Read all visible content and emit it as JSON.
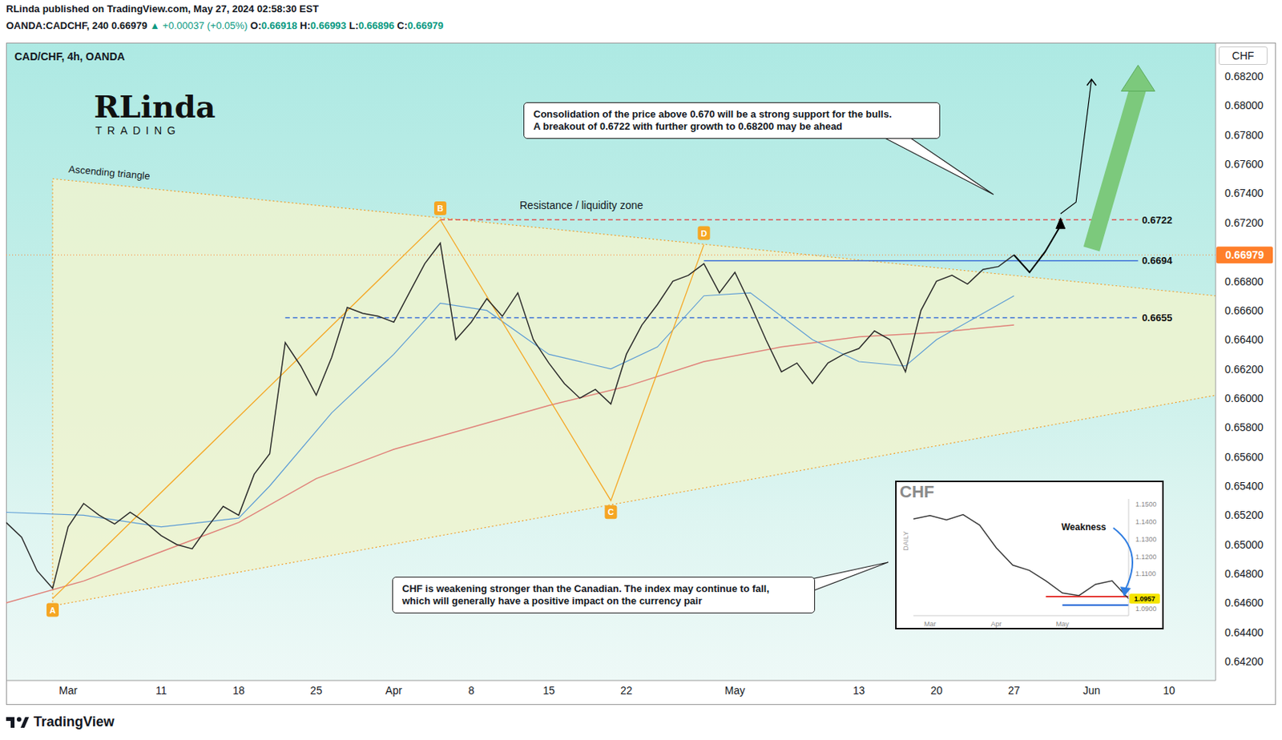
{
  "header": {
    "title": "RLinda published on TradingView.com, May 27, 2024 02:58:30 EST",
    "symbol": "OANDA:CADCHF, 240",
    "price": "0.66979",
    "change": "▲ +0.00037 (+0.05%)",
    "ohlc": [
      [
        "O:",
        "0.66918"
      ],
      [
        "H:",
        "0.66993"
      ],
      [
        "L:",
        "0.66896"
      ],
      [
        "C:",
        "0.66979"
      ]
    ]
  },
  "logo": {
    "name": "RLinda",
    "subtitle": "TRADING"
  },
  "footer": "TradingView",
  "chart_data": [
    {
      "type": "line",
      "title": "CAD/CHF, 4h, OANDA",
      "y_axis_label": "CHF",
      "categories": [
        null,
        null,
        null,
        null,
        "Mar",
        null,
        null,
        null,
        null,
        null,
        "11",
        null,
        null,
        null,
        null,
        "18",
        null,
        null,
        null,
        null,
        "25",
        null,
        null,
        null,
        null,
        "Apr",
        null,
        null,
        null,
        null,
        "8",
        null,
        null,
        null,
        null,
        "15",
        null,
        null,
        null,
        null,
        "22",
        null,
        null,
        null,
        null,
        null,
        null,
        "May",
        null,
        null,
        null,
        null,
        null,
        null,
        null,
        "13",
        null,
        null,
        null,
        null,
        "20",
        null,
        null,
        null,
        null,
        "27",
        null,
        null,
        null,
        null,
        "Jun",
        null,
        null,
        null,
        null,
        "10",
        null,
        null,
        null
      ],
      "values": [
        0.6515,
        0.6505,
        0.6482,
        0.647,
        0.6512,
        0.6528,
        0.652,
        0.6514,
        0.6522,
        0.6515,
        0.6506,
        0.65,
        0.6497,
        0.6512,
        0.6526,
        0.652,
        0.6548,
        0.6562,
        0.6638,
        0.6622,
        0.6602,
        0.6628,
        0.6662,
        0.6658,
        0.6656,
        0.6652,
        0.6672,
        0.6692,
        0.6706,
        0.664,
        0.6652,
        0.6668,
        0.6656,
        0.6672,
        0.664,
        0.6624,
        0.661,
        0.66,
        0.6606,
        0.6596,
        0.663,
        0.665,
        0.6664,
        0.668,
        0.6684,
        0.6692,
        0.6672,
        0.6686,
        0.6664,
        0.664,
        0.6618,
        0.6624,
        0.661,
        0.6624,
        0.663,
        0.6634,
        0.6646,
        0.664,
        0.6618,
        0.666,
        0.668,
        0.6684,
        0.6678,
        0.6688,
        0.669,
        0.66979,
        null,
        null,
        null,
        null,
        null,
        null,
        null,
        null,
        null,
        null,
        null,
        null,
        null
      ],
      "color": "#2b2b2b",
      "moving_averages": [
        {
          "color": "#5b9bd5",
          "values": [
            0.6522,
            null,
            null,
            null,
            null,
            0.652,
            null,
            null,
            null,
            null,
            0.6512,
            null,
            null,
            null,
            null,
            0.6518,
            null,
            0.654,
            null,
            null,
            null,
            0.659,
            null,
            null,
            null,
            0.663,
            null,
            null,
            0.6665,
            null,
            null,
            0.666,
            null,
            null,
            null,
            0.663,
            null,
            null,
            null,
            0.662,
            null,
            null,
            0.6635,
            null,
            null,
            0.667,
            null,
            null,
            0.6672,
            null,
            null,
            null,
            0.664,
            null,
            null,
            0.6625,
            null,
            null,
            0.6622,
            null,
            0.664,
            null,
            null,
            0.6658,
            null,
            0.667,
            null,
            null,
            null,
            null,
            null,
            null,
            null,
            null,
            null,
            null,
            null,
            null,
            null
          ]
        },
        {
          "color": "#e0827a",
          "values": [
            0.646,
            null,
            null,
            null,
            null,
            0.6475,
            null,
            null,
            null,
            null,
            0.6495,
            null,
            null,
            null,
            null,
            0.6515,
            null,
            null,
            null,
            null,
            0.6545,
            null,
            null,
            null,
            null,
            0.6565,
            null,
            null,
            null,
            null,
            0.658,
            null,
            null,
            null,
            null,
            0.6595,
            null,
            null,
            null,
            null,
            0.6608,
            null,
            null,
            null,
            null,
            0.6625,
            null,
            null,
            null,
            null,
            0.6635,
            null,
            null,
            null,
            null,
            0.6642,
            null,
            null,
            null,
            null,
            0.6645,
            null,
            null,
            null,
            null,
            0.665,
            null,
            null,
            null,
            null,
            null,
            null,
            null,
            null,
            null,
            null,
            null,
            null,
            null
          ]
        }
      ],
      "ylim": [
        0.6407,
        0.6843
      ],
      "yticks": [
        {
          "value": 0.682,
          "label": "0.68200"
        },
        {
          "value": 0.68,
          "label": "0.68000"
        },
        {
          "value": 0.678,
          "label": "0.67800"
        },
        {
          "value": 0.676,
          "label": "0.67600"
        },
        {
          "value": 0.674,
          "label": "0.67400"
        },
        {
          "value": 0.672,
          "label": "0.67200"
        },
        {
          "value": 0.668,
          "label": "0.66800"
        },
        {
          "value": 0.666,
          "label": "0.66600"
        },
        {
          "value": 0.664,
          "label": "0.66400"
        },
        {
          "value": 0.662,
          "label": "0.66200"
        },
        {
          "value": 0.66,
          "label": "0.66000"
        },
        {
          "value": 0.658,
          "label": "0.65800"
        },
        {
          "value": 0.656,
          "label": "0.65600"
        },
        {
          "value": 0.654,
          "label": "0.65400"
        },
        {
          "value": 0.652,
          "label": "0.65200"
        },
        {
          "value": 0.65,
          "label": "0.65000"
        },
        {
          "value": 0.648,
          "label": "0.64800"
        },
        {
          "value": 0.646,
          "label": "0.64600"
        },
        {
          "value": 0.644,
          "label": "0.64400"
        },
        {
          "value": 0.642,
          "label": "0.64200"
        }
      ],
      "grid": false,
      "last_price": {
        "value": 0.66979,
        "label": "0.66979",
        "color": "#ff7f2a"
      },
      "levels": [
        {
          "value": 0.6722,
          "label": "0.6722",
          "color": "#e05050",
          "line_style": "dashed"
        },
        {
          "value": 0.6694,
          "label": "0.6694",
          "color": "#3b6fd8",
          "line_style": "solid"
        },
        {
          "value": 0.6655,
          "label": "0.6655",
          "color": "#3b6fd8",
          "line_style": "dashed"
        }
      ],
      "zone_label": "Resistance / liquidity zone",
      "triangle": {
        "label": "Ascending triangle",
        "color": "#f0a030",
        "upper": [
          null,
          null,
          null,
          0.675,
          null,
          null,
          null,
          null,
          null,
          null,
          null,
          null,
          null,
          null,
          null,
          null,
          null,
          null,
          null,
          null,
          null,
          null,
          null,
          null,
          null,
          null,
          null,
          null,
          null,
          null,
          null,
          null,
          null,
          null,
          null,
          null,
          null,
          null,
          null,
          null,
          null,
          null,
          null,
          null,
          null,
          null,
          null,
          null,
          null,
          null,
          null,
          null,
          null,
          null,
          null,
          null,
          null,
          null,
          null,
          null,
          null,
          null,
          null,
          null,
          null,
          null,
          null,
          null,
          null,
          null,
          null,
          null,
          null,
          null,
          null,
          null,
          null,
          null,
          0.667
        ],
        "lower": [
          null,
          null,
          null,
          0.6458,
          null,
          null,
          null,
          null,
          null,
          null,
          null,
          null,
          null,
          null,
          null,
          null,
          null,
          null,
          null,
          null,
          null,
          null,
          null,
          null,
          null,
          null,
          null,
          null,
          null,
          null,
          null,
          null,
          null,
          null,
          null,
          null,
          null,
          null,
          null,
          null,
          null,
          null,
          null,
          null,
          null,
          null,
          null,
          null,
          null,
          null,
          null,
          null,
          null,
          null,
          null,
          null,
          null,
          null,
          null,
          null,
          null,
          null,
          null,
          null,
          null,
          null,
          null,
          null,
          null,
          null,
          null,
          null,
          null,
          null,
          null,
          null,
          null,
          null,
          0.6602
        ]
      },
      "pattern": {
        "color": "#f5a623",
        "values": [
          null,
          null,
          null,
          0.6463,
          null,
          null,
          null,
          null,
          null,
          null,
          null,
          null,
          null,
          null,
          null,
          null,
          null,
          null,
          null,
          null,
          null,
          null,
          null,
          null,
          null,
          null,
          null,
          null,
          0.6722,
          null,
          null,
          null,
          null,
          null,
          null,
          null,
          null,
          null,
          null,
          0.653,
          null,
          null,
          null,
          null,
          null,
          0.6705,
          null,
          null,
          null,
          null,
          null,
          null,
          null,
          null,
          null,
          null,
          null,
          null,
          null,
          null,
          null,
          null,
          null,
          null,
          null,
          null,
          null,
          null,
          null,
          null,
          null,
          null,
          null,
          null,
          null,
          null,
          null,
          null,
          null
        ],
        "point_labels": [
          null,
          null,
          null,
          "A",
          null,
          null,
          null,
          null,
          null,
          null,
          null,
          null,
          null,
          null,
          null,
          null,
          null,
          null,
          null,
          null,
          null,
          null,
          null,
          null,
          null,
          null,
          null,
          null,
          "B",
          null,
          null,
          null,
          null,
          null,
          null,
          null,
          null,
          null,
          null,
          "C",
          null,
          null,
          null,
          null,
          null,
          "D",
          null,
          null,
          null,
          null,
          null,
          null,
          null,
          null,
          null,
          null,
          null,
          null,
          null,
          null,
          null,
          null,
          null,
          null,
          null,
          null,
          null,
          null,
          null,
          null,
          null,
          null,
          null,
          null,
          null,
          null,
          null,
          null,
          null
        ]
      },
      "projection": {
        "color": "#000000",
        "values": [
          null,
          null,
          null,
          null,
          null,
          null,
          null,
          null,
          null,
          null,
          null,
          null,
          null,
          null,
          null,
          null,
          null,
          null,
          null,
          null,
          null,
          null,
          null,
          null,
          null,
          null,
          null,
          null,
          null,
          null,
          null,
          null,
          null,
          null,
          null,
          null,
          null,
          null,
          null,
          null,
          null,
          null,
          null,
          null,
          null,
          null,
          null,
          null,
          null,
          null,
          null,
          null,
          null,
          null,
          null,
          null,
          null,
          null,
          null,
          null,
          null,
          null,
          null,
          null,
          null,
          0.66979,
          0.6686,
          0.67,
          0.6718,
          null,
          null,
          null,
          null,
          null,
          null,
          null,
          null,
          null,
          null
        ]
      },
      "projection_extension": {
        "color": "#000000",
        "values": [
          null,
          null,
          null,
          null,
          null,
          null,
          null,
          null,
          null,
          null,
          null,
          null,
          null,
          null,
          null,
          null,
          null,
          null,
          null,
          null,
          null,
          null,
          null,
          null,
          null,
          null,
          null,
          null,
          null,
          null,
          null,
          null,
          null,
          null,
          null,
          null,
          null,
          null,
          null,
          null,
          null,
          null,
          null,
          null,
          null,
          null,
          null,
          null,
          null,
          null,
          null,
          null,
          null,
          null,
          null,
          null,
          null,
          null,
          null,
          null,
          null,
          null,
          null,
          null,
          null,
          null,
          null,
          null,
          0.6726,
          0.6734,
          0.6818,
          null,
          null,
          null,
          null,
          null,
          null,
          null,
          null
        ]
      },
      "target_arrow": {
        "color": "#7cc97c",
        "values": [
          null,
          null,
          null,
          null,
          null,
          null,
          null,
          null,
          null,
          null,
          null,
          null,
          null,
          null,
          null,
          null,
          null,
          null,
          null,
          null,
          null,
          null,
          null,
          null,
          null,
          null,
          null,
          null,
          null,
          null,
          null,
          null,
          null,
          null,
          null,
          null,
          null,
          null,
          null,
          null,
          null,
          null,
          null,
          null,
          null,
          null,
          null,
          null,
          null,
          null,
          null,
          null,
          null,
          null,
          null,
          null,
          null,
          null,
          null,
          null,
          null,
          null,
          null,
          null,
          null,
          null,
          null,
          null,
          null,
          null,
          0.6702,
          null,
          null,
          0.6812,
          null,
          null,
          null,
          null,
          null
        ]
      },
      "annotations": [
        [
          "Consolidation of the price above 0.670 will be a strong support for the bulls.",
          "A breakout of 0.6722 with further growth to 0.68200 may be ahead"
        ],
        [
          "CHF is weakening stronger than the Canadian. The index may continue to fall,",
          "which will generally have a positive impact on the currency pair"
        ]
      ]
    },
    {
      "type": "line",
      "title": "CHF",
      "y_axis_label": "DAILY",
      "categories": [
        null,
        "Mar",
        null,
        null,
        null,
        "Apr",
        null,
        null,
        null,
        "May",
        null,
        null,
        null,
        null
      ],
      "values": [
        1.1415,
        1.1435,
        1.141,
        1.144,
        1.138,
        1.125,
        1.115,
        1.112,
        1.106,
        1.099,
        1.0975,
        1.104,
        1.106,
        1.0957
      ],
      "color": "#3a3a3a",
      "ylim": [
        1.086,
        1.153
      ],
      "yticks": [
        {
          "value": 1.15,
          "label": "1.1500"
        },
        {
          "value": 1.14,
          "label": "1.1400"
        },
        {
          "value": 1.13,
          "label": "1.1300"
        },
        {
          "value": 1.12,
          "label": "1.1200"
        },
        {
          "value": 1.11,
          "label": "1.1100"
        },
        {
          "value": 1.09,
          "label": "1.0900"
        }
      ],
      "grid": false,
      "levels": [
        {
          "value": 1.097,
          "color": "#e53935",
          "line_style": "solid"
        },
        {
          "value": 1.092,
          "color": "#1e63d6",
          "line_style": "solid"
        }
      ],
      "last_price": {
        "value": 1.0957,
        "label": "1.0957",
        "color": "#f5e400"
      },
      "annotation": "Weakness"
    }
  ]
}
